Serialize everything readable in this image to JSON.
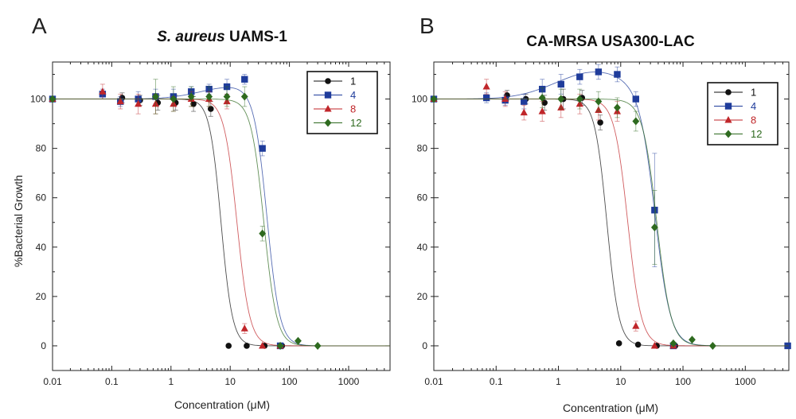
{
  "figure": {
    "y_axis_label": "%Bacterial Growth",
    "x_axis_label": "Concentration (μM)"
  },
  "chart_data": [
    {
      "type": "scatter",
      "panel_letter": "A",
      "title_italic": "S. aureus",
      "title_rest": " UAMS-1",
      "xlabel": "Concentration (μM)",
      "ylabel": "%Bacterial Growth",
      "x_scale": "log",
      "xlim": [
        0.01,
        5000
      ],
      "ylim": [
        -10,
        115
      ],
      "x_ticks": [
        0.01,
        0.1,
        1,
        10,
        100,
        1000
      ],
      "x_tick_labels": [
        "0.01",
        "0.1",
        "1",
        "10",
        "100",
        "1000"
      ],
      "y_ticks": [
        0,
        20,
        40,
        60,
        80,
        100
      ],
      "y_tick_labels": [
        "0",
        "20",
        "40",
        "60",
        "80",
        "100"
      ],
      "legend_position": "top-right",
      "series": [
        {
          "name": "1",
          "color": "#111111",
          "marker": "circle",
          "x": [
            0.01,
            0.15,
            0.3,
            0.6,
            1.2,
            2.4,
            4.7,
            9.4,
            19,
            38,
            75
          ],
          "y": [
            100,
            100.5,
            99.5,
            98.5,
            98.5,
            98,
            96,
            0,
            0,
            0,
            0
          ],
          "err": [
            0,
            2,
            2,
            3,
            3,
            3,
            3,
            0,
            0,
            0,
            0
          ],
          "fit": {
            "ic50": 7,
            "hill": 4.5
          }
        },
        {
          "name": "4",
          "color": "#1f3c9b",
          "marker": "square",
          "x": [
            0.01,
            0.07,
            0.14,
            0.28,
            0.55,
            1.1,
            2.2,
            4.4,
            8.8,
            17.5,
            35,
            70
          ],
          "y": [
            100,
            102,
            99,
            100,
            101,
            101,
            103,
            104,
            105,
            108,
            80,
            0
          ],
          "err": [
            0,
            2,
            2,
            3,
            3,
            3,
            2,
            2,
            3,
            2,
            3,
            0
          ],
          "fit": {
            "ic50": 42,
            "hill": 4.0,
            "bump": 5,
            "bump_center": 12,
            "bump_width": 0.8
          }
        },
        {
          "name": "8",
          "color": "#c0262a",
          "marker": "triangle",
          "x": [
            0.01,
            0.07,
            0.14,
            0.28,
            0.55,
            1.1,
            2.2,
            4.4,
            8.8,
            17.5,
            35,
            70
          ],
          "y": [
            100,
            103,
            99,
            98,
            98,
            98,
            100,
            100,
            99,
            7,
            0,
            0
          ],
          "err": [
            0,
            3,
            3,
            4,
            4,
            3,
            3,
            3,
            3,
            2,
            0,
            0
          ],
          "fit": {
            "ic50": 13,
            "hill": 4.0
          }
        },
        {
          "name": "12",
          "color": "#2e6a1f",
          "marker": "diamond",
          "x": [
            0.01,
            0.55,
            1.1,
            2.2,
            4.4,
            8.8,
            17.5,
            35,
            70,
            140,
            300
          ],
          "y": [
            100,
            101,
            100,
            101,
            101,
            101,
            101,
            45.5,
            0,
            2,
            0
          ],
          "err": [
            0,
            7,
            5,
            4,
            4,
            4,
            4,
            3,
            0,
            0,
            0
          ],
          "fit": {
            "ic50": 37,
            "hill": 4.0
          }
        }
      ]
    },
    {
      "type": "scatter",
      "panel_letter": "B",
      "title_italic": "",
      "title_rest": "CA-MRSA USA300-LAC",
      "xlabel": "Concentration (μM)",
      "ylabel": "",
      "x_scale": "log",
      "xlim": [
        0.01,
        5000
      ],
      "ylim": [
        -10,
        115
      ],
      "x_ticks": [
        0.01,
        0.1,
        1,
        10,
        100,
        1000
      ],
      "x_tick_labels": [
        "0.01",
        "0.1",
        "1",
        "10",
        "100",
        "1000"
      ],
      "y_ticks": [
        0,
        20,
        40,
        60,
        80,
        100
      ],
      "y_tick_labels": [
        "0",
        "20",
        "40",
        "60",
        "80",
        "100"
      ],
      "legend_position": "top-right",
      "series": [
        {
          "name": "1",
          "color": "#111111",
          "marker": "circle",
          "x": [
            0.01,
            0.15,
            0.3,
            0.6,
            1.2,
            2.4,
            4.7,
            9.4,
            19,
            38,
            75
          ],
          "y": [
            100,
            101.5,
            100,
            98.5,
            100,
            100.5,
            90.5,
            1,
            0.5,
            0,
            0
          ],
          "err": [
            0,
            2,
            2,
            3,
            4,
            3,
            3,
            0,
            0,
            0,
            0
          ],
          "fit": {
            "ic50": 6,
            "hill": 4.5
          }
        },
        {
          "name": "4",
          "color": "#1f3c9b",
          "marker": "square",
          "x": [
            0.01,
            0.07,
            0.14,
            0.28,
            0.55,
            1.1,
            2.2,
            4.4,
            8.8,
            17.5,
            35,
            70,
            4800
          ],
          "y": [
            100,
            100.5,
            99.5,
            99,
            104,
            106,
            109,
            111,
            110,
            100,
            55,
            0,
            0
          ],
          "err": [
            0,
            2,
            2,
            3,
            4,
            4,
            3,
            3,
            3,
            3,
            23,
            0,
            0
          ],
          "fit": {
            "ic50": 36,
            "hill": 3.5,
            "bump": 11,
            "bump_center": 4,
            "bump_width": 0.9
          }
        },
        {
          "name": "8",
          "color": "#c0262a",
          "marker": "triangle",
          "x": [
            0.01,
            0.07,
            0.14,
            0.28,
            0.55,
            1.1,
            2.2,
            4.4,
            8.8,
            17.5,
            35,
            70
          ],
          "y": [
            100,
            105,
            100,
            94.5,
            95,
            96.5,
            98,
            95.5,
            95,
            8,
            0,
            0
          ],
          "err": [
            0,
            3,
            3,
            3,
            4,
            4,
            4,
            4,
            4,
            2,
            0,
            0
          ],
          "fit": {
            "ic50": 13,
            "hill": 4.0
          }
        },
        {
          "name": "12",
          "color": "#2e6a1f",
          "marker": "diamond",
          "x": [
            0.01,
            0.55,
            1.1,
            2.2,
            4.4,
            8.8,
            17.5,
            35,
            70,
            140,
            300
          ],
          "y": [
            100,
            100.5,
            100,
            100,
            99,
            96.5,
            91,
            48,
            1,
            2.5,
            0
          ],
          "err": [
            0,
            4,
            4,
            4,
            4,
            4,
            4,
            15,
            0,
            0,
            0
          ],
          "fit": {
            "ic50": 38,
            "hill": 3.8
          }
        }
      ]
    }
  ]
}
